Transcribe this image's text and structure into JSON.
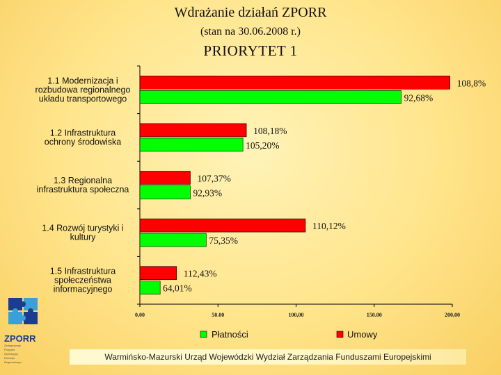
{
  "title": "Wdrażanie działań ZPORR",
  "subtitle": "(stan na 30.06.2008 r.)",
  "heading": "PRIORYTET 1",
  "footer": "Warmińsko-Mazurski Urząd Wojewódzki Wydział Zarządzania Funduszami Europejskimi",
  "logo": {
    "word": "ZPORR",
    "lines": [
      "Zintegrowany",
      "Program",
      "Operacyjny",
      "Rozwoju",
      "Regionalnego"
    ]
  },
  "colors": {
    "umowy": "#ff0000",
    "platnosci": "#00ff00",
    "axis": "#000000"
  },
  "chart_data": {
    "type": "bar",
    "orientation": "horizontal",
    "categories": [
      [
        "1.1 Modernizacja i",
        "rozbudowa regionalnego",
        "układu transportowego"
      ],
      [
        "1.2 Infrastruktura",
        "ochrony środowiska"
      ],
      [
        "1.3 Regionalna",
        "infrastruktura społeczna"
      ],
      [
        "1.4 Rozwój turystyki i",
        "kultury"
      ],
      [
        "1.5 Infrastruktura",
        "społeczeństwa",
        "informacyjnego"
      ]
    ],
    "series": [
      {
        "name": "Umowy",
        "color": "#ff0000",
        "values": [
          198.5,
          68.2,
          32.3,
          106.0,
          23.5
        ],
        "labels": [
          "108,8%",
          "108,18%",
          "107,37%",
          "110,12%",
          "112,43%"
        ]
      },
      {
        "name": "Płatności",
        "color": "#00ff00",
        "values": [
          167.3,
          66.0,
          32.3,
          42.5,
          13.0
        ],
        "labels": [
          "92,68%",
          "105,20%",
          "92,93%",
          "75,35%",
          "64,01%"
        ]
      }
    ],
    "xlim": [
      0,
      200
    ],
    "xticks": [
      "0,00",
      "50.00",
      "100,00",
      "150.00",
      "200,00"
    ],
    "legend_position": "bottom",
    "legend": [
      "Płatności",
      "Umowy"
    ]
  }
}
